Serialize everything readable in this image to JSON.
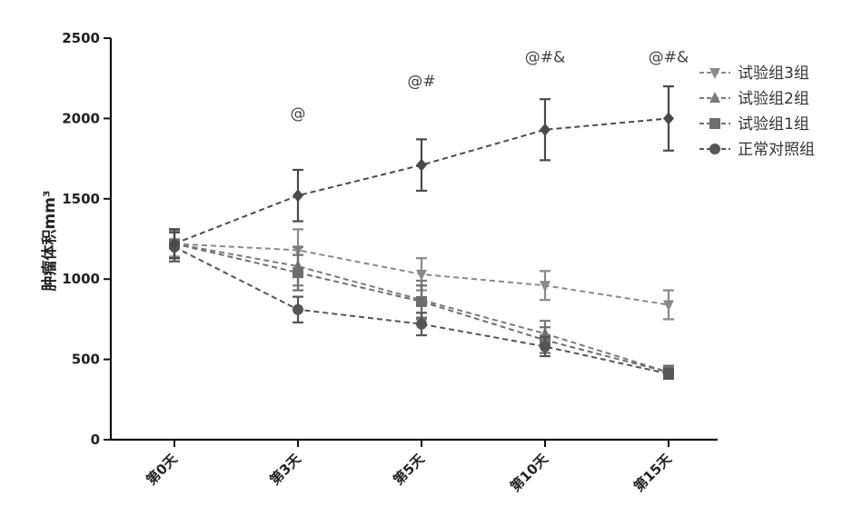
{
  "chart_data": {
    "type": "line",
    "title": "",
    "xlabel": "",
    "ylabel": "肿瘤体积mm³",
    "ylim": [
      0,
      2500
    ],
    "yticks": [
      0,
      500,
      1000,
      1500,
      2000,
      2500
    ],
    "categories": [
      "第0天",
      "第3天",
      "第5天",
      "第10天",
      "第15天"
    ],
    "legend_position": "top-right",
    "grid": false,
    "series": [
      {
        "name": "试验组3组",
        "marker": "triangle-down",
        "color": "#8a8a8a",
        "values": [
          1220,
          1180,
          1030,
          960,
          840
        ],
        "errors": [
          80,
          130,
          100,
          90,
          90
        ]
      },
      {
        "name": "试验组2组",
        "marker": "triangle-up",
        "color": "#7a7a7a",
        "values": [
          1220,
          1080,
          870,
          660,
          420
        ],
        "errors": [
          90,
          120,
          120,
          80,
          40
        ]
      },
      {
        "name": "试验组1组",
        "marker": "square",
        "color": "#6e6e6e",
        "values": [
          1220,
          1040,
          860,
          620,
          420
        ],
        "errors": [
          90,
          110,
          100,
          80,
          40
        ]
      },
      {
        "name": "正常对照组",
        "marker": "circle",
        "color": "#555555",
        "values": [
          1200,
          810,
          720,
          580,
          410
        ],
        "errors": [
          90,
          80,
          70,
          60,
          30
        ]
      },
      {
        "name": "",
        "marker": "diamond",
        "color": "#4a4a4a",
        "values": [
          1220,
          1520,
          1710,
          1930,
          2000
        ],
        "errors": [
          90,
          160,
          160,
          190,
          200
        ]
      }
    ],
    "annotations": [
      {
        "category": "第3天",
        "y": 2000,
        "text": "@"
      },
      {
        "category": "第5天",
        "y": 2200,
        "text": "@#"
      },
      {
        "category": "第10天",
        "y": 2350,
        "text": "@#&"
      },
      {
        "category": "第15天",
        "y": 2350,
        "text": "@#&"
      }
    ]
  }
}
